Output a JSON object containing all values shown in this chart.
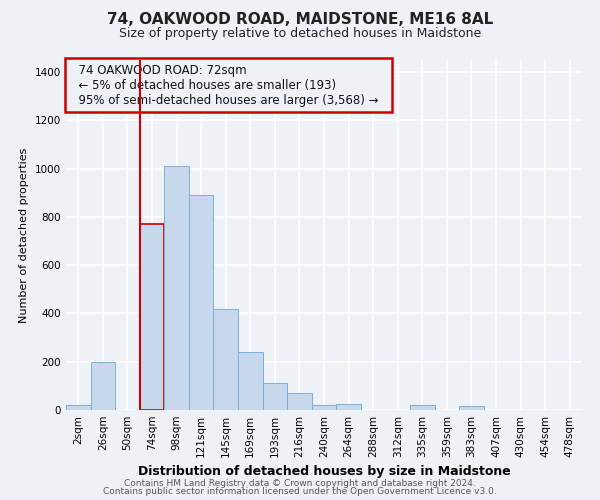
{
  "title1": "74, OAKWOOD ROAD, MAIDSTONE, ME16 8AL",
  "title2": "Size of property relative to detached houses in Maidstone",
  "xlabel": "Distribution of detached houses by size in Maidstone",
  "ylabel": "Number of detached properties",
  "footer1": "Contains HM Land Registry data © Crown copyright and database right 2024.",
  "footer2": "Contains public sector information licensed under the Open Government Licence v3.0.",
  "annotation_line1": "74 OAKWOOD ROAD: 72sqm",
  "annotation_line2": "← 5% of detached houses are smaller (193)",
  "annotation_line3": "95% of semi-detached houses are larger (3,568) →",
  "bar_color": "#c8d8ec",
  "bar_edge_color": "#7aafd4",
  "highlight_bar_edge_color": "#cc0000",
  "vline_color": "#cc0000",
  "vline_x_index": 3,
  "categories": [
    "2sqm",
    "26sqm",
    "50sqm",
    "74sqm",
    "98sqm",
    "121sqm",
    "145sqm",
    "169sqm",
    "193sqm",
    "216sqm",
    "240sqm",
    "264sqm",
    "288sqm",
    "312sqm",
    "335sqm",
    "359sqm",
    "383sqm",
    "407sqm",
    "430sqm",
    "454sqm",
    "478sqm"
  ],
  "values": [
    20,
    200,
    0,
    770,
    1010,
    890,
    420,
    240,
    110,
    70,
    20,
    25,
    0,
    0,
    20,
    0,
    15,
    0,
    0,
    0,
    0
  ],
  "ylim": [
    0,
    1450
  ],
  "yticks": [
    0,
    200,
    400,
    600,
    800,
    1000,
    1200,
    1400
  ],
  "bg_color": "#eef2f7",
  "grid_color": "#ffffff",
  "title1_fontsize": 11,
  "title2_fontsize": 9,
  "xlabel_fontsize": 9,
  "ylabel_fontsize": 8,
  "tick_fontsize": 7.5,
  "footer_fontsize": 6.5
}
